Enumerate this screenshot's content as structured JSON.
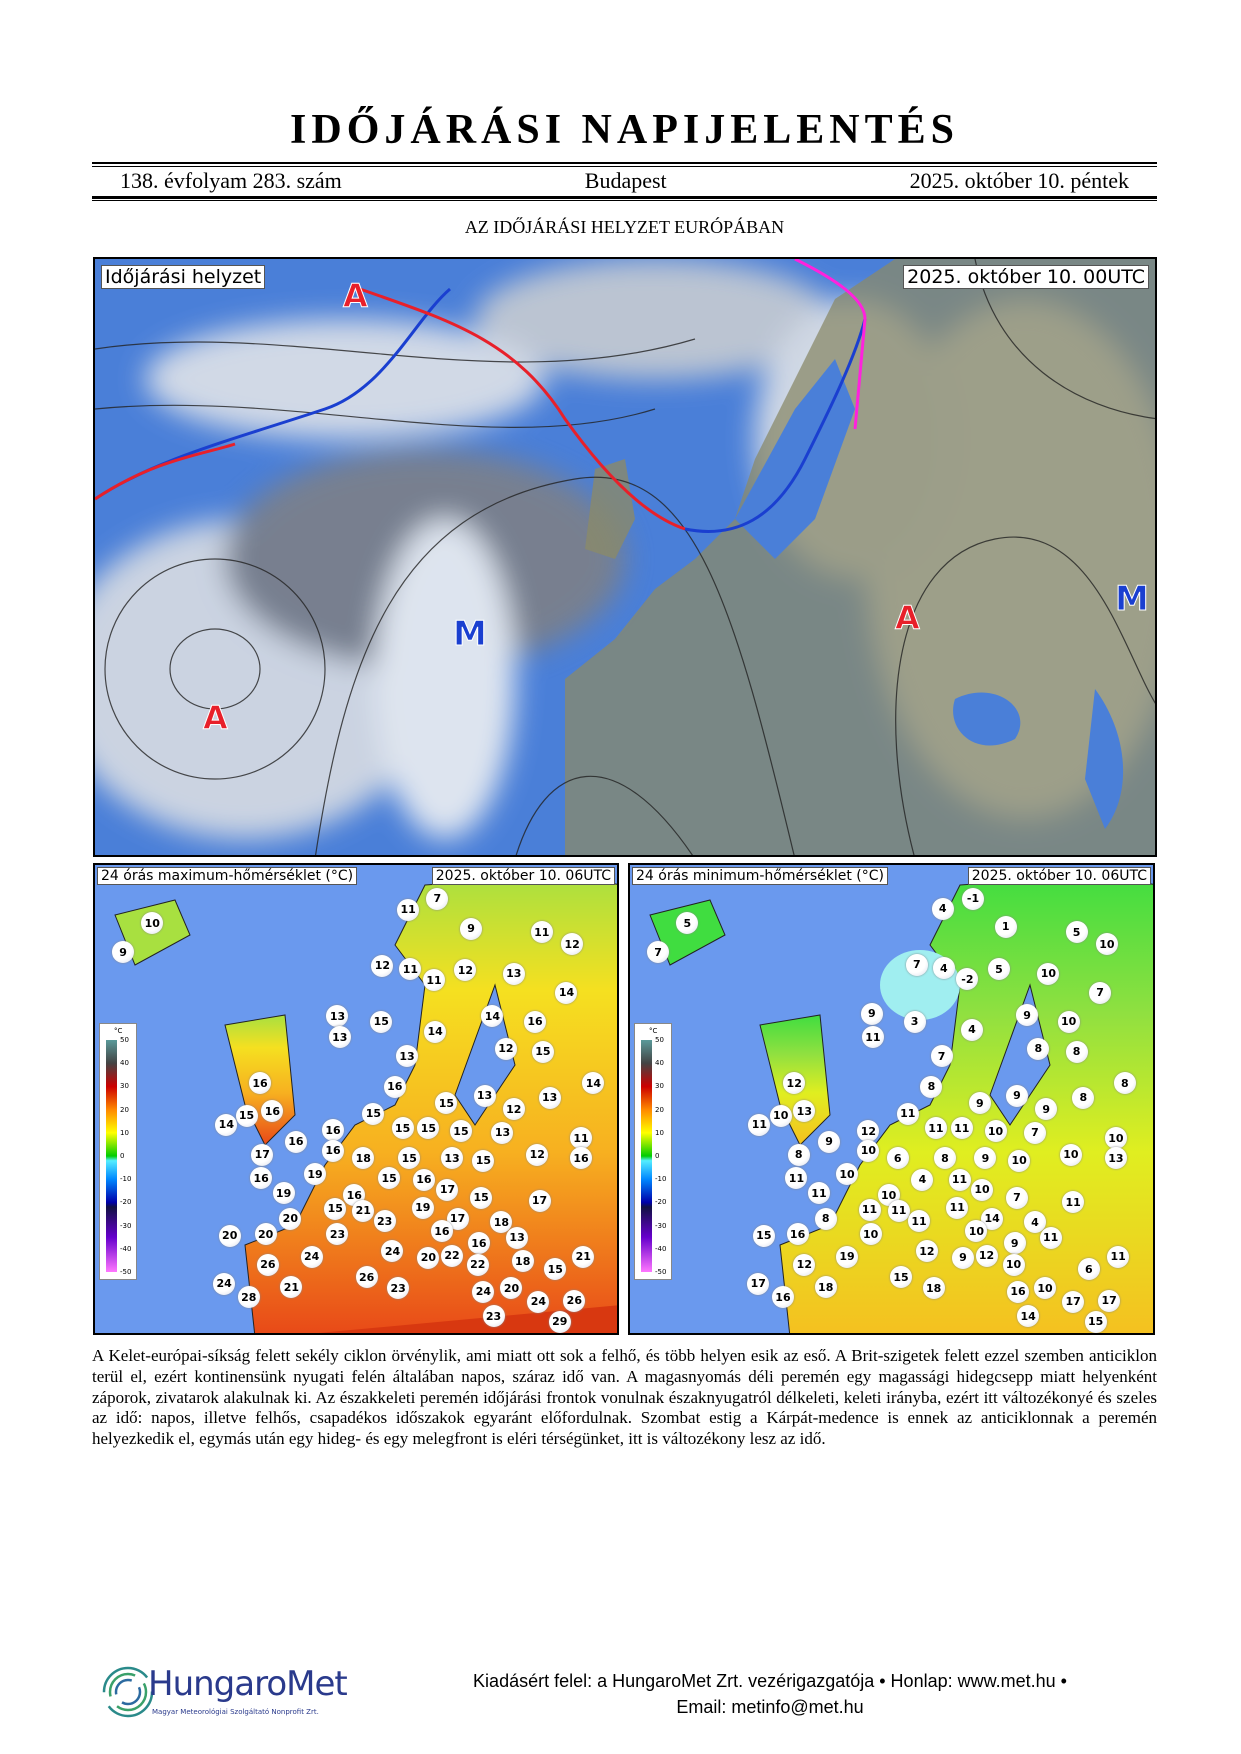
{
  "header": {
    "title": "IDŐJÁRÁSI NAPIJELENTÉS",
    "volume": "138. évfolyam 283. szám",
    "city": "Budapest",
    "date": "2025. október 10. péntek",
    "section_title": "AZ IDŐJÁRÁSI HELYZET EURÓPÁBAN"
  },
  "synoptic_map": {
    "label": "Időjárási helyzet",
    "timestamp": "2025. október 10. 00UTC",
    "centers": [
      "A",
      "A",
      "A",
      "M",
      "M"
    ],
    "colors": {
      "high": "#e8202a",
      "low": "#1a3fd0",
      "warm_front": "#e8202a",
      "cold_front": "#1a3fd0",
      "occluded_front": "#ff22dd",
      "sea": "#4a7fd8"
    }
  },
  "max_temp_map": {
    "label": "24 órás maximum-hőmérséklet (°C)",
    "timestamp": "2025. október 10. 06UTC",
    "values": [
      7,
      11,
      10,
      9,
      11,
      12,
      9,
      12,
      11,
      11,
      12,
      13,
      14,
      13,
      15,
      13,
      14,
      14,
      16,
      12,
      15,
      13,
      16,
      16,
      14,
      15,
      16,
      15,
      13,
      12,
      13,
      14,
      15,
      15,
      15,
      15,
      13,
      11,
      16,
      16,
      17,
      16,
      18,
      15,
      13,
      15,
      12,
      16,
      16,
      19,
      15,
      16,
      17,
      19,
      16,
      15,
      17,
      15,
      21,
      19,
      20,
      23,
      17,
      18,
      20,
      20,
      16,
      13,
      23,
      16,
      24,
      24,
      20,
      22,
      18,
      21,
      26,
      22,
      15,
      26,
      24,
      21,
      23,
      24,
      20,
      28,
      24,
      26,
      23,
      29
    ]
  },
  "min_temp_map": {
    "label": "24 órás minimum-hőmérséklet (°C)",
    "timestamp": "2025. október 10. 06UTC",
    "values": [
      -1,
      4,
      5,
      1,
      5,
      10,
      7,
      7,
      4,
      -2,
      5,
      10,
      7,
      9,
      3,
      11,
      4,
      9,
      10,
      7,
      8,
      8,
      12,
      8,
      8,
      10,
      13,
      9,
      9,
      9,
      8,
      11,
      11,
      11,
      11,
      10,
      7,
      10,
      12,
      9,
      10,
      6,
      8,
      9,
      10,
      10,
      13,
      8,
      11,
      10,
      4,
      11,
      10,
      7,
      11,
      10,
      11,
      11,
      11,
      11,
      8,
      11,
      14,
      4,
      15,
      16,
      10,
      10,
      9,
      11,
      19,
      12,
      9,
      12,
      11,
      12,
      10,
      6,
      15,
      17,
      18,
      18,
      16,
      10,
      16,
      17,
      17,
      14,
      15
    ]
  },
  "color_scale": {
    "unit": "°C",
    "ticks": [
      "50",
      "40",
      "30",
      "20",
      "10",
      "0",
      "-10",
      "-20",
      "-30",
      "-40",
      "-50"
    ]
  },
  "paragraph": "A Kelet-európai-síkság felett sekély ciklon örvénylik, ami miatt ott sok a felhő, és több helyen esik az eső. A Brit-szigetek felett ezzel szemben anticiklon terül el, ezért kontinensünk nyugati felén általában napos, száraz idő van. A magasnyomás déli peremén egy magassági hidegcsepp miatt helyenként záporok, zivatarok alakulnak ki. Az északkeleti peremén időjárási frontok vonulnak északnyugatról délkeleti, keleti irányba, ezért itt változékonyé és szeles az idő: napos, illetve felhős, csapadékos időszakok egyaránt előfordulnak. Szombat estig a Kárpát-medence is ennek az anticiklonnak a peremén helyezkedik el, egymás után egy hideg- és egy melegfront is eléri térségünket, itt is változékony lesz az idő.",
  "footer": {
    "logo_text": "HungaroMet",
    "logo_subtitle": "Magyar Meteorológiai Szolgáltató Nonprofit Zrt.",
    "line1": "Kiadásért felel: a HungaroMet Zrt. vezérigazgatója • Honlap: www.met.hu •",
    "line2": "Email: metinfo@met.hu"
  }
}
